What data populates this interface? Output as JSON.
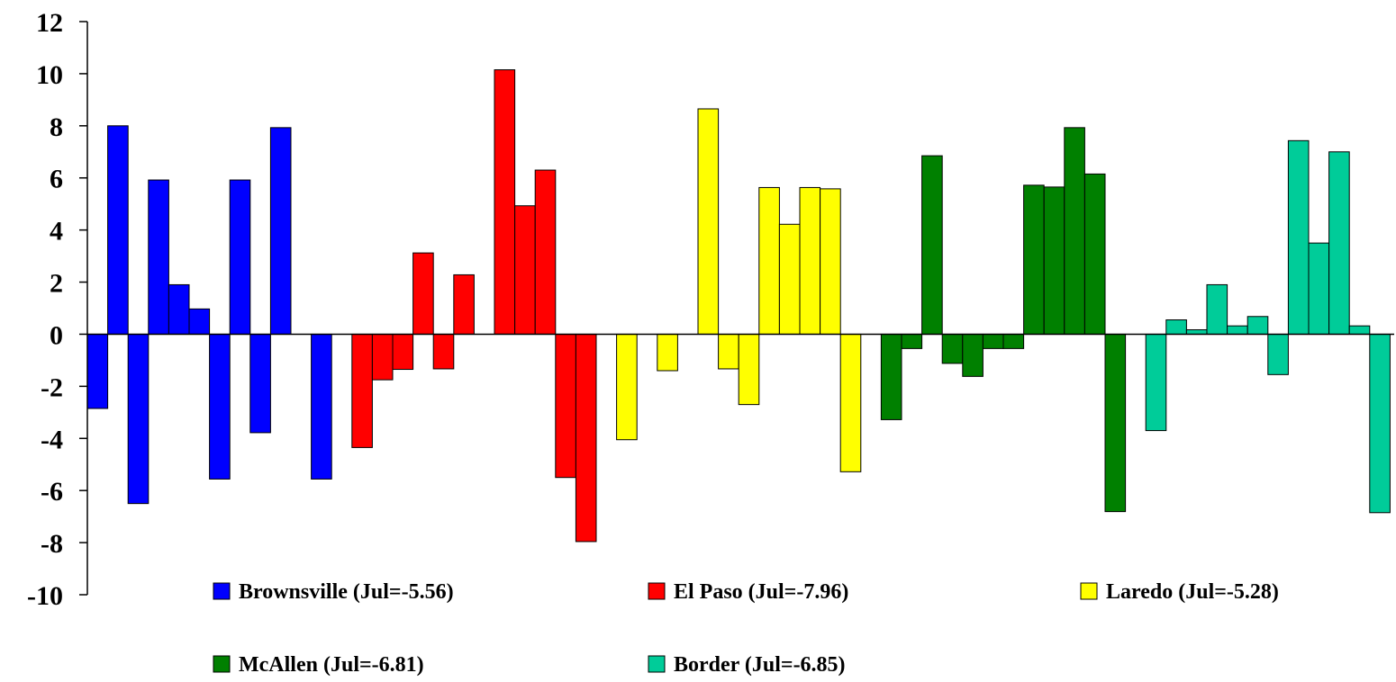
{
  "chart_data": {
    "type": "bar",
    "title": "",
    "xlabel": "",
    "ylabel": "",
    "ylim": [
      -10,
      12
    ],
    "yticks": [
      "12",
      "10",
      "8",
      "6",
      "4",
      "2",
      "0",
      "-2",
      "-4",
      "-6",
      "-8",
      "-10"
    ],
    "ytick_values": [
      12,
      10,
      8,
      6,
      4,
      2,
      0,
      -2,
      -4,
      -6,
      -8,
      -10
    ],
    "grid": false,
    "legend_position": "bottom",
    "series": [
      {
        "name": "Brownsville (Jul=-5.56)",
        "color": "#0000FF",
        "values": [
          -2.85,
          8.0,
          -6.5,
          5.92,
          1.9,
          0.97,
          -5.56,
          5.92,
          -3.78,
          7.93,
          0,
          -5.56
        ]
      },
      {
        "name": "El Paso (Jul=-7.96)",
        "color": "#FF0000",
        "values": [
          -4.35,
          -1.75,
          -1.35,
          3.12,
          -1.33,
          2.28,
          0,
          10.15,
          4.93,
          6.3,
          -5.5,
          -7.96
        ]
      },
      {
        "name": "Laredo (Jul=-5.28)",
        "color": "#FFFF00",
        "values": [
          -4.05,
          0,
          -1.4,
          0,
          8.65,
          -1.33,
          -2.7,
          5.63,
          4.22,
          5.63,
          5.58,
          -5.28
        ]
      },
      {
        "name": "McAllen (Jul=-6.81)",
        "color": "#008000",
        "values": [
          -3.28,
          -0.55,
          6.85,
          -1.12,
          -1.62,
          -0.55,
          -0.55,
          5.72,
          5.65,
          7.93,
          6.15,
          -6.81
        ]
      },
      {
        "name": "Border  (Jul=-6.85)",
        "color": "#00CC99",
        "values": [
          -3.7,
          0.55,
          0.17,
          1.9,
          0.32,
          0.68,
          -1.55,
          7.43,
          3.5,
          7.0,
          0.32,
          -6.85
        ]
      }
    ]
  }
}
